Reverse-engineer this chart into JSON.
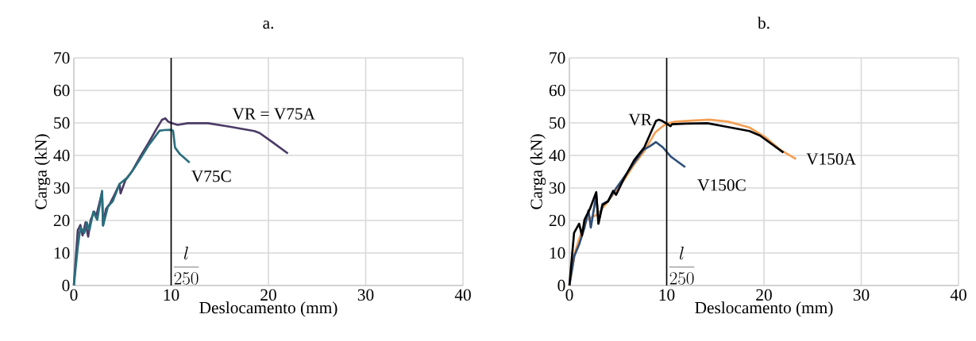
{
  "chart_data": [
    {
      "type": "line",
      "title": "a.",
      "xlabel": "Deslocamento (mm)",
      "ylabel": "Carga (kN)",
      "xlim": [
        0,
        40
      ],
      "ylim": [
        0,
        70
      ],
      "xticks": [
        0,
        10,
        20,
        30,
        40
      ],
      "yticks": [
        0,
        10,
        20,
        30,
        40,
        50,
        60,
        70
      ],
      "grid": true,
      "ref_lines": [
        {
          "axis": "x",
          "value": 10,
          "label": "\\frac{l}{250}",
          "color": "#000000"
        }
      ],
      "series": [
        {
          "name": "VR = V75A",
          "color": "#4b3b66",
          "x": [
            0,
            0.4,
            0.67,
            0.9,
            1.2,
            1.47,
            1.73,
            2.1,
            2.27,
            2.9,
            3.0,
            3.3,
            3.7,
            4.1,
            4.7,
            4.8,
            5.3,
            6.0,
            6.9,
            7.7,
            8.5,
            9.07,
            9.4,
            9.7,
            10,
            10.66,
            11.7,
            13.8,
            15.9,
            18.55,
            19.1,
            20.4,
            22
          ],
          "values": [
            0,
            17,
            18.6,
            15.4,
            19.4,
            15,
            20.2,
            22.7,
            21,
            28.7,
            18.6,
            23.5,
            25.1,
            27.5,
            31.2,
            28.3,
            32.4,
            35.2,
            40,
            44,
            48.2,
            51,
            51.4,
            50.4,
            50,
            49.4,
            49.9,
            49.9,
            48.9,
            47.5,
            46.9,
            44.1,
            40.6
          ]
        },
        {
          "name": "V75C",
          "color": "#2a6e7c",
          "x": [
            0,
            0.4,
            0.67,
            1.07,
            1.33,
            1.6,
            2.0,
            2.4,
            2.9,
            3.0,
            3.5,
            4.0,
            4.7,
            5.5,
            6.1,
            6.9,
            7.7,
            8.8,
            9.3,
            10,
            10.2,
            10.4,
            10.9,
            11.9
          ],
          "values": [
            0,
            11.7,
            17.8,
            16.2,
            19.4,
            17,
            22.7,
            20.2,
            29.1,
            18.4,
            24.3,
            25.9,
            31.2,
            33.2,
            35.6,
            39.3,
            43.2,
            47.6,
            47.8,
            47.9,
            47.6,
            42.4,
            40.4,
            37.8
          ]
        }
      ]
    },
    {
      "type": "line",
      "title": "b.",
      "xlabel": "Deslocamento (mm)",
      "ylabel": "Carga (kN)",
      "xlim": [
        0,
        40
      ],
      "ylim": [
        0,
        70
      ],
      "xticks": [
        0,
        10,
        20,
        30,
        40
      ],
      "yticks": [
        0,
        10,
        20,
        30,
        40,
        50,
        60,
        70
      ],
      "grid": true,
      "ref_lines": [
        {
          "axis": "x",
          "value": 10,
          "label": "\\frac{l}{250}",
          "color": "#000000"
        }
      ],
      "series": [
        {
          "name": "V150A",
          "color": "#f4a055",
          "x": [
            0,
            0.6,
            1.29,
            1.8,
            2.9,
            3.97,
            5.6,
            6.65,
            7.7,
            8.8,
            9.6,
            10,
            10.9,
            12.55,
            14.4,
            16.3,
            18.5,
            20.1,
            21.7,
            23.3
          ],
          "values": [
            0,
            10.5,
            17,
            20.2,
            21.9,
            25.9,
            32.4,
            37.2,
            41.3,
            47,
            49,
            49.8,
            50.4,
            50.7,
            51,
            50.4,
            48.6,
            45.7,
            41.7,
            38.9
          ]
        },
        {
          "name": "V150C",
          "color": "#2f4e78",
          "x": [
            0,
            0.48,
            1.0,
            1.55,
            1.96,
            2.2,
            2.76,
            3.0,
            3.4,
            3.97,
            4.8,
            5.6,
            6.65,
            7.6,
            8.3,
            8.9,
            9.6,
            10.4,
            11.9
          ],
          "values": [
            0,
            8.9,
            12.6,
            17.8,
            23.1,
            17.8,
            27.9,
            19.4,
            25.1,
            25.9,
            29.9,
            33.2,
            37.7,
            41.7,
            42.9,
            44.1,
            42.5,
            39.7,
            36.4
          ]
        },
        {
          "name": "VR",
          "color": "#000000",
          "x": [
            0,
            0.48,
            1.0,
            1.29,
            1.55,
            2.1,
            2.76,
            2.98,
            3.4,
            3.97,
            4.5,
            4.8,
            5.6,
            6.65,
            7.7,
            8.9,
            9.2,
            9.55,
            10,
            10.4,
            10.54,
            12,
            14.2,
            16.0,
            18.5,
            19.6,
            22
          ],
          "values": [
            0,
            16.2,
            19,
            15.4,
            20.2,
            23.5,
            28.7,
            19,
            24.7,
            25.9,
            29.1,
            27.9,
            32.8,
            38.5,
            42.5,
            50.6,
            51,
            50.6,
            49.8,
            49,
            49.6,
            49.8,
            49.9,
            48.9,
            47.5,
            46.1,
            40.9
          ]
        }
      ]
    }
  ]
}
